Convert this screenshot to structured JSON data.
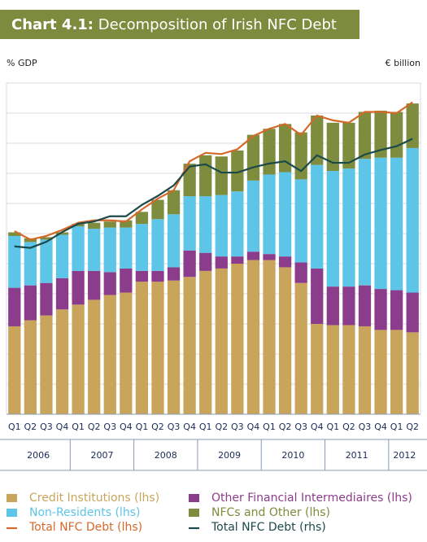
{
  "chart_data": {
    "type": "stacked_bar_line",
    "chart_label": "Chart 4.1:",
    "title": "Decomposition of Irish NFC Debt",
    "y_label": "% GDP",
    "y2_label": "€ billion",
    "categories": [
      "Q1",
      "Q2",
      "Q3",
      "Q4",
      "Q1",
      "Q2",
      "Q3",
      "Q4",
      "Q1",
      "Q2",
      "Q3",
      "Q4",
      "Q1",
      "Q2",
      "Q3",
      "Q4",
      "Q1",
      "Q2",
      "Q3",
      "Q4",
      "Q1",
      "Q2",
      "Q3",
      "Q4",
      "Q1",
      "Q2"
    ],
    "years": [
      "2006",
      "2007",
      "2008",
      "2009",
      "2010",
      "2011",
      "2012"
    ],
    "ylim": [
      0,
      275
    ],
    "yticks": [
      0,
      25,
      50,
      75,
      100,
      125,
      150,
      175,
      200,
      225,
      250,
      275
    ],
    "y2lim": [
      0,
      440
    ],
    "grid": true,
    "series": [
      {
        "name": "Credit Institutions (lhs)",
        "kind": "bar",
        "color": "#c9a55c",
        "values": [
          73,
          78,
          82,
          87,
          91,
          95,
          99,
          101,
          110,
          110,
          111,
          114,
          119,
          121,
          125,
          128,
          128,
          122,
          109,
          75,
          74,
          74,
          73,
          70,
          70,
          68
        ]
      },
      {
        "name": "Other Financial Intermediaires (lhs)",
        "kind": "bar",
        "color": "#8b3c8b",
        "values": [
          32,
          29,
          27,
          26,
          28,
          24,
          19,
          20,
          9,
          9,
          11,
          22,
          15,
          10,
          6,
          7,
          5,
          9,
          17,
          46,
          32,
          32,
          34,
          34,
          33,
          33
        ]
      },
      {
        "name": "Non-Residents (lhs)",
        "kind": "bar",
        "color": "#5cc5e8",
        "values": [
          43,
          36,
          36,
          36,
          37,
          35,
          37,
          34,
          39,
          43,
          44,
          45,
          47,
          51,
          54,
          59,
          66,
          70,
          69,
          86,
          96,
          98,
          105,
          109,
          110,
          120
        ]
      },
      {
        "name": "NFCs and Other (lhs)",
        "kind": "bar",
        "color": "#7e8c3d",
        "values": [
          3,
          3,
          2,
          2,
          2,
          5,
          5,
          6,
          10,
          16,
          20,
          27,
          34,
          32,
          34,
          38,
          38,
          40,
          39,
          41,
          40,
          38,
          39,
          39,
          38,
          37
        ]
      },
      {
        "name": "Total NFC Debt (lhs)",
        "kind": "line",
        "color": "#d4692a",
        "values": [
          152,
          145,
          148,
          153,
          159,
          161,
          161,
          160,
          170,
          179,
          186,
          210,
          217,
          216,
          220,
          231,
          237,
          241,
          232,
          248,
          244,
          242,
          251,
          251,
          250,
          259
        ]
      },
      {
        "name": "Total NFC Debt (rhs)",
        "kind": "line",
        "axis": "y2",
        "color": "#1c4a4a",
        "values": [
          223,
          221,
          229,
          242,
          253,
          256,
          263,
          263,
          278,
          290,
          304,
          329,
          332,
          321,
          321,
          328,
          333,
          336,
          323,
          344,
          334,
          334,
          345,
          351,
          356,
          366
        ]
      }
    ]
  }
}
